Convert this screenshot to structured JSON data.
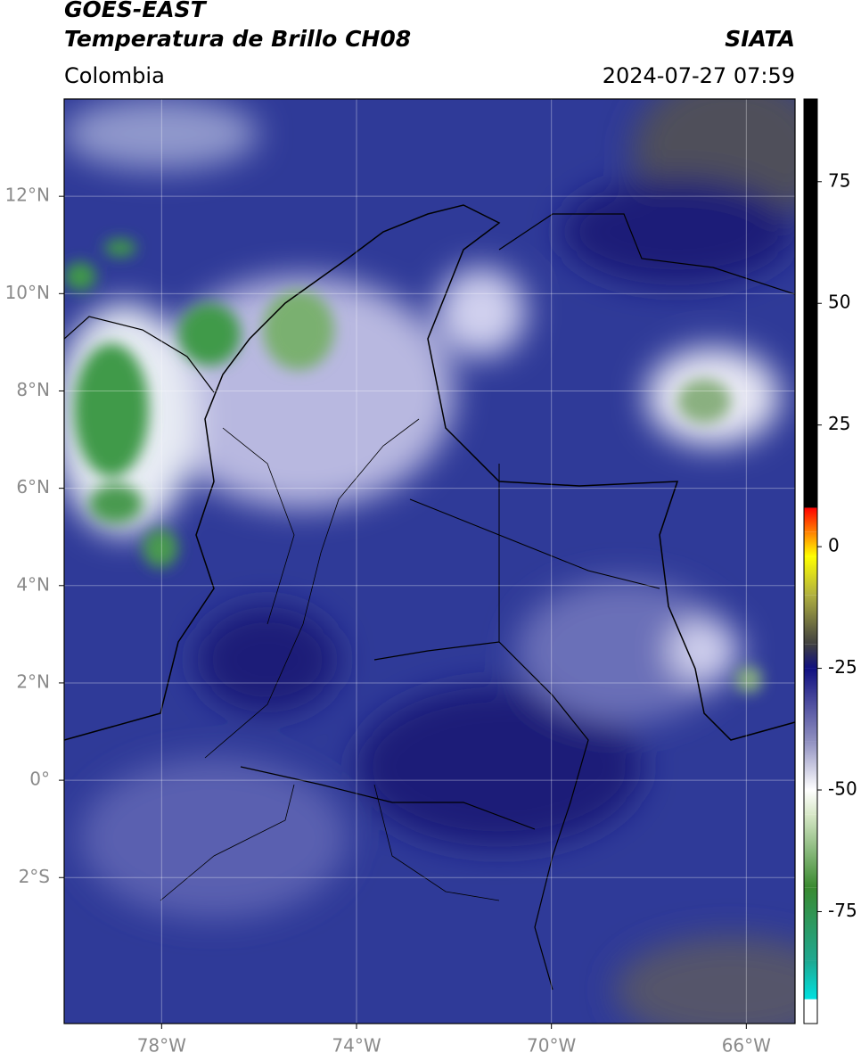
{
  "header": {
    "title": "GOES-EAST",
    "subtitle": "Temperatura de Brillo CH08",
    "agency": "SIATA",
    "region": "Colombia",
    "datetime": "2024-07-27 07:59"
  },
  "map": {
    "xlim": [
      -80,
      -65
    ],
    "ylim": [
      -5,
      14
    ],
    "xticks": [
      {
        "value": -78,
        "label": "78°W"
      },
      {
        "value": -74,
        "label": "74°W"
      },
      {
        "value": -70,
        "label": "70°W"
      },
      {
        "value": -66,
        "label": "66°W"
      }
    ],
    "yticks": [
      {
        "value": 12,
        "label": "12°N"
      },
      {
        "value": 10,
        "label": "10°N"
      },
      {
        "value": 8,
        "label": "8°N"
      },
      {
        "value": 6,
        "label": "6°N"
      },
      {
        "value": 4,
        "label": "4°N"
      },
      {
        "value": 2,
        "label": "2°N"
      },
      {
        "value": 0,
        "label": "0°"
      },
      {
        "value": -2,
        "label": "2°S"
      }
    ],
    "grid": true
  },
  "colorbar": {
    "lim": [
      -98,
      92
    ],
    "ticks": [
      -75,
      -50,
      -25,
      0,
      25,
      50,
      75
    ],
    "stops": [
      {
        "value": -98,
        "color": "#ffffff"
      },
      {
        "value": -93,
        "color": "#ffffff"
      },
      {
        "value": -93,
        "color": "#00e0e0"
      },
      {
        "value": -85,
        "color": "#1fa890"
      },
      {
        "value": -70,
        "color": "#3a8a30"
      },
      {
        "value": -55,
        "color": "#d8e8c8"
      },
      {
        "value": -50,
        "color": "#ffffff"
      },
      {
        "value": -40,
        "color": "#9090c0"
      },
      {
        "value": -25,
        "color": "#101080"
      },
      {
        "value": -20,
        "color": "#404040"
      },
      {
        "value": -10,
        "color": "#b0b040"
      },
      {
        "value": -2,
        "color": "#ffff00"
      },
      {
        "value": 3,
        "color": "#ff8000"
      },
      {
        "value": 8,
        "color": "#ff0000"
      },
      {
        "value": 8,
        "color": "#000000"
      },
      {
        "value": 92,
        "color": "#000000"
      }
    ]
  }
}
